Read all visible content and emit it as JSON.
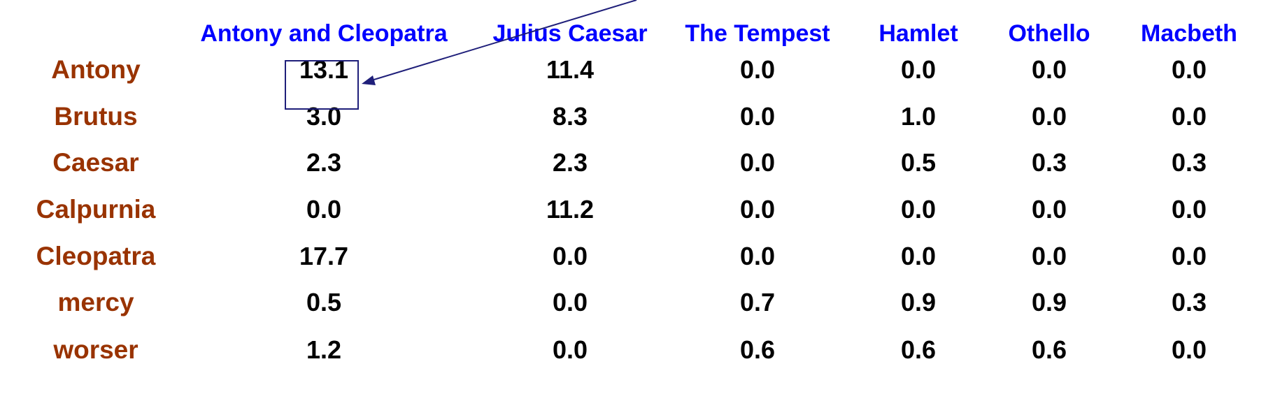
{
  "colors": {
    "header": "#0000ff",
    "row_label": "#993300",
    "value": "#000000",
    "highlight": "#1f1f7a"
  },
  "table": {
    "columns": [
      "Antony and Cleopatra",
      "Julius Caesar",
      "The Tempest",
      "Hamlet",
      "Othello",
      "Macbeth"
    ],
    "rows": [
      {
        "term": "Antony",
        "values": [
          "13.1",
          "11.4",
          "0.0",
          "0.0",
          "0.0",
          "0.0"
        ]
      },
      {
        "term": "Brutus",
        "values": [
          "3.0",
          "8.3",
          "0.0",
          "1.0",
          "0.0",
          "0.0"
        ]
      },
      {
        "term": "Caesar",
        "values": [
          "2.3",
          "2.3",
          "0.0",
          "0.5",
          "0.3",
          "0.3"
        ]
      },
      {
        "term": "Calpurnia",
        "values": [
          "0.0",
          "11.2",
          "0.0",
          "0.0",
          "0.0",
          "0.0"
        ]
      },
      {
        "term": "Cleopatra",
        "values": [
          "17.7",
          "0.0",
          "0.0",
          "0.0",
          "0.0",
          "0.0"
        ]
      },
      {
        "term": "mercy",
        "values": [
          "0.5",
          "0.0",
          "0.7",
          "0.9",
          "0.9",
          "0.3"
        ]
      },
      {
        "term": "worser",
        "values": [
          "1.2",
          "0.0",
          "0.6",
          "0.6",
          "0.6",
          "0.0"
        ]
      }
    ],
    "highlighted_cell": {
      "row": 0,
      "col": 0
    }
  }
}
